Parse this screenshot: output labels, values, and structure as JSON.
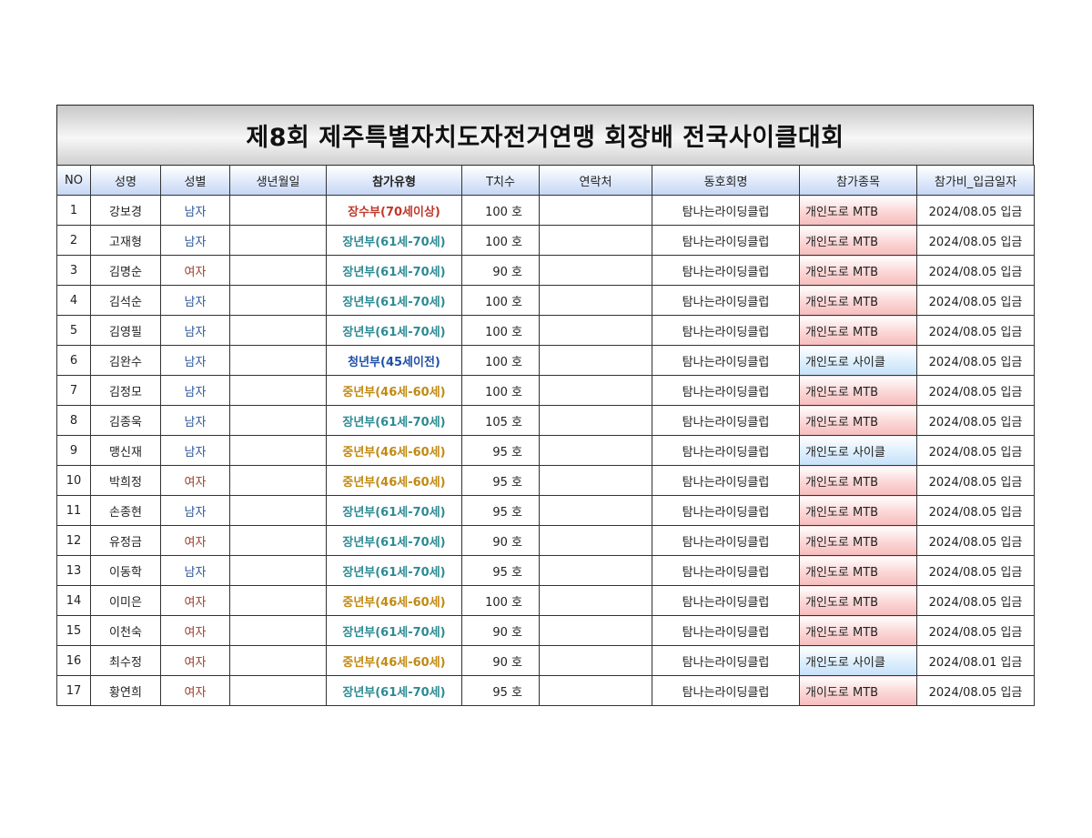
{
  "title": "제8회 제주특별자치도자전거연맹 회장배 전국사이클대회",
  "headers": [
    "NO",
    "성명",
    "성별",
    "생년월일",
    "참가유형",
    "T치수",
    "연락처",
    "동호회명",
    "참가종목",
    "참가비_입금일자"
  ],
  "colors": {
    "male": "#2a5599",
    "female": "#9c3b27",
    "type_장수부": "#c0392b",
    "type_장년부": "#2e8b94",
    "type_청년부": "#1f4fa8",
    "type_중년부": "#c28a12",
    "event_mtb": "#f6bcbc",
    "event_cycle": "#c6e1f8"
  },
  "rows": [
    {
      "no": "1",
      "name": "강보경",
      "gender": "남자",
      "birth": "",
      "type": "장수부(70세이상)",
      "type_key": "장수부",
      "tsize": "100 호",
      "contact": "",
      "club": "탐나는라이딩클럽",
      "event": "개인도로 MTB",
      "event_key": "mtb",
      "paid": "2024/08.05 입금"
    },
    {
      "no": "2",
      "name": "고재형",
      "gender": "남자",
      "birth": "",
      "type": "장년부(61세-70세)",
      "type_key": "장년부",
      "tsize": "100 호",
      "contact": "",
      "club": "탐나는라이딩클럽",
      "event": "개인도로 MTB",
      "event_key": "mtb",
      "paid": "2024/08.05 입금"
    },
    {
      "no": "3",
      "name": "김명순",
      "gender": "여자",
      "birth": "",
      "type": "장년부(61세-70세)",
      "type_key": "장년부",
      "tsize": "90 호",
      "contact": "",
      "club": "탐나는라이딩클럽",
      "event": "개인도로 MTB",
      "event_key": "mtb",
      "paid": "2024/08.05 입금"
    },
    {
      "no": "4",
      "name": "김석순",
      "gender": "남자",
      "birth": "",
      "type": "장년부(61세-70세)",
      "type_key": "장년부",
      "tsize": "100 호",
      "contact": "",
      "club": "탐나는라이딩클럽",
      "event": "개인도로 MTB",
      "event_key": "mtb",
      "paid": "2024/08.05 입금"
    },
    {
      "no": "5",
      "name": "김영필",
      "gender": "남자",
      "birth": "",
      "type": "장년부(61세-70세)",
      "type_key": "장년부",
      "tsize": "100 호",
      "contact": "",
      "club": "탐나는라이딩클럽",
      "event": "개인도로 MTB",
      "event_key": "mtb",
      "paid": "2024/08.05 입금"
    },
    {
      "no": "6",
      "name": "김완수",
      "gender": "남자",
      "birth": "",
      "type": "청년부(45세이전)",
      "type_key": "청년부",
      "tsize": "100 호",
      "contact": "",
      "club": "탐나는라이딩클럽",
      "event": "개인도로 사이클",
      "event_key": "cycle",
      "paid": "2024/08.05 입금"
    },
    {
      "no": "7",
      "name": "김정모",
      "gender": "남자",
      "birth": "",
      "type": "중년부(46세-60세)",
      "type_key": "중년부",
      "tsize": "100 호",
      "contact": "",
      "club": "탐나는라이딩클럽",
      "event": "개인도로 MTB",
      "event_key": "mtb",
      "paid": "2024/08.05 입금"
    },
    {
      "no": "8",
      "name": "김종욱",
      "gender": "남자",
      "birth": "",
      "type": "장년부(61세-70세)",
      "type_key": "장년부",
      "tsize": "105 호",
      "contact": "",
      "club": "탐나는라이딩클럽",
      "event": "개인도로 MTB",
      "event_key": "mtb",
      "paid": "2024/08.05 입금"
    },
    {
      "no": "9",
      "name": "맹신재",
      "gender": "남자",
      "birth": "",
      "type": "중년부(46세-60세)",
      "type_key": "중년부",
      "tsize": "95 호",
      "contact": "",
      "club": "탐나는라이딩클럽",
      "event": "개인도로 사이클",
      "event_key": "cycle",
      "paid": "2024/08.05 입금"
    },
    {
      "no": "10",
      "name": "박희정",
      "gender": "여자",
      "birth": "",
      "type": "중년부(46세-60세)",
      "type_key": "중년부",
      "tsize": "95 호",
      "contact": "",
      "club": "탐나는라이딩클럽",
      "event": "개인도로 MTB",
      "event_key": "mtb",
      "paid": "2024/08.05 입금"
    },
    {
      "no": "11",
      "name": "손종현",
      "gender": "남자",
      "birth": "",
      "type": "장년부(61세-70세)",
      "type_key": "장년부",
      "tsize": "95 호",
      "contact": "",
      "club": "탐나는라이딩클럽",
      "event": "개인도로 MTB",
      "event_key": "mtb",
      "paid": "2024/08.05 입금"
    },
    {
      "no": "12",
      "name": "유정금",
      "gender": "여자",
      "birth": "",
      "type": "장년부(61세-70세)",
      "type_key": "장년부",
      "tsize": "90 호",
      "contact": "",
      "club": "탐나는라이딩클럽",
      "event": "개인도로 MTB",
      "event_key": "mtb",
      "paid": "2024/08.05 입금"
    },
    {
      "no": "13",
      "name": "이동학",
      "gender": "남자",
      "birth": "",
      "type": "장년부(61세-70세)",
      "type_key": "장년부",
      "tsize": "95 호",
      "contact": "",
      "club": "탐나는라이딩클럽",
      "event": "개인도로 MTB",
      "event_key": "mtb",
      "paid": "2024/08.05 입금"
    },
    {
      "no": "14",
      "name": "이미은",
      "gender": "여자",
      "birth": "",
      "type": "중년부(46세-60세)",
      "type_key": "중년부",
      "tsize": "100 호",
      "contact": "",
      "club": "탐나는라이딩클럽",
      "event": "개인도로 MTB",
      "event_key": "mtb",
      "paid": "2024/08.05 입금"
    },
    {
      "no": "15",
      "name": "이천숙",
      "gender": "여자",
      "birth": "",
      "type": "장년부(61세-70세)",
      "type_key": "장년부",
      "tsize": "90 호",
      "contact": "",
      "club": "탐나는라이딩클럽",
      "event": "개인도로 MTB",
      "event_key": "mtb",
      "paid": "2024/08.05 입금"
    },
    {
      "no": "16",
      "name": "최수정",
      "gender": "여자",
      "birth": "",
      "type": "중년부(46세-60세)",
      "type_key": "중년부",
      "tsize": "90 호",
      "contact": "",
      "club": "탐나는라이딩클럽",
      "event": "개인도로 사이클",
      "event_key": "cycle",
      "paid": "2024/08.01 입금"
    },
    {
      "no": "17",
      "name": "황연희",
      "gender": "여자",
      "birth": "",
      "type": "장년부(61세-70세)",
      "type_key": "장년부",
      "tsize": "95 호",
      "contact": "",
      "club": "탐나는라이딩클럽",
      "event": "개이도로 MTB",
      "event_key": "mtb",
      "paid": "2024/08.05 입금"
    }
  ]
}
